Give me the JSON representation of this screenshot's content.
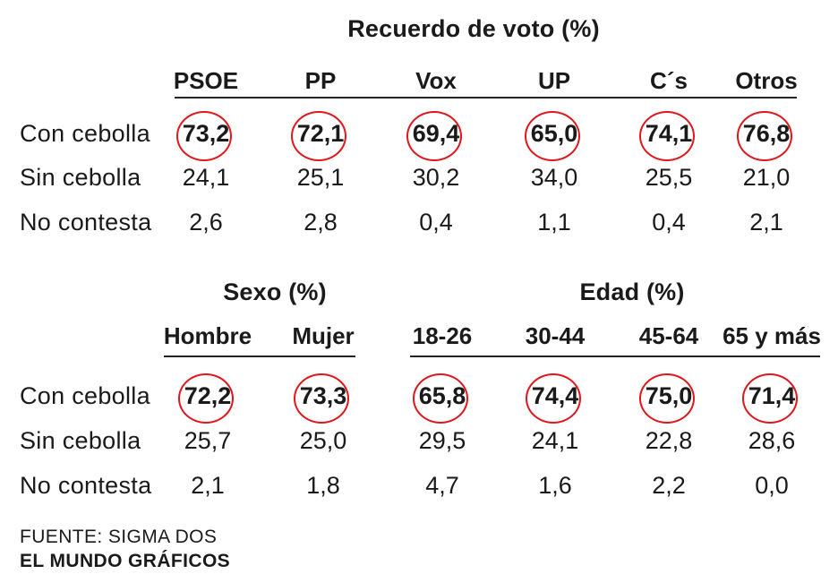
{
  "chart_data": [
    {
      "type": "table",
      "title": "Recuerdo de voto (%)",
      "columns": [
        "PSOE",
        "PP",
        "Vox",
        "UP",
        "C´s",
        "Otros"
      ],
      "rows": [
        {
          "label": "Con cebolla",
          "values": [
            "73,2",
            "72,1",
            "69,4",
            "65,0",
            "74,1",
            "76,8"
          ],
          "highlight": true
        },
        {
          "label": "Sin cebolla",
          "values": [
            "24,1",
            "25,1",
            "30,2",
            "34,0",
            "25,5",
            "21,0"
          ],
          "highlight": false
        },
        {
          "label": "No contesta",
          "values": [
            "2,6",
            "2,8",
            "0,4",
            "1,1",
            "0,4",
            "2,1"
          ],
          "highlight": false
        }
      ]
    },
    {
      "type": "table",
      "title": "Sexo (%)",
      "columns": [
        "Hombre",
        "Mujer"
      ],
      "rows": [
        {
          "label": "Con cebolla",
          "values": [
            "72,2",
            "73,3"
          ],
          "highlight": true
        },
        {
          "label": "Sin cebolla",
          "values": [
            "25,7",
            "25,0"
          ],
          "highlight": false
        },
        {
          "label": "No contesta",
          "values": [
            "2,1",
            "1,8"
          ],
          "highlight": false
        }
      ]
    },
    {
      "type": "table",
      "title": "Edad (%)",
      "columns": [
        "18-26",
        "30-44",
        "45-64",
        "65 y más"
      ],
      "rows": [
        {
          "label": "Con cebolla",
          "values": [
            "65,8",
            "74,4",
            "75,0",
            "71,4"
          ],
          "highlight": true
        },
        {
          "label": "Sin cebolla",
          "values": [
            "29,5",
            "24,1",
            "22,8",
            "28,6"
          ],
          "highlight": false
        },
        {
          "label": "No contesta",
          "values": [
            "4,7",
            "1,6",
            "2,2",
            "0,0"
          ],
          "highlight": false
        }
      ]
    }
  ],
  "colors": {
    "highlight_ring": "#e0161b",
    "text": "#1a1a1a",
    "rule": "#222222"
  },
  "footer": {
    "source": "FUENTE: SIGMA DOS",
    "brand": "EL MUNDO GRÁFICOS"
  }
}
